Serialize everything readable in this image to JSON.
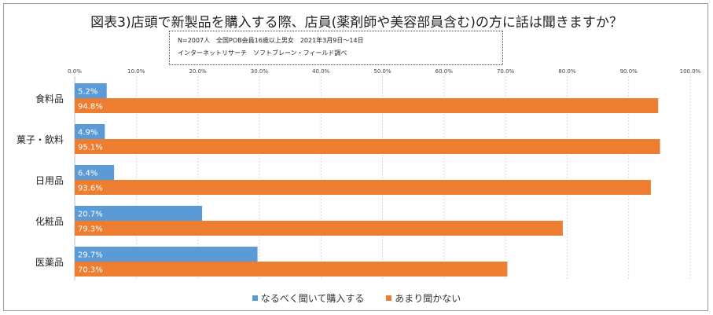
{
  "chart_data": {
    "type": "bar",
    "orientation": "horizontal",
    "title": "図表3)店頭で新製品を購入する際、店員(薬剤師や美容部員含む)の方に話は聞きますか？",
    "notes": [
      "N=2007人　全国POB会員16歳以上男女　2021年3月9日～14日",
      "インターネットリサーチ　ソフトブレーン・フィールド調べ"
    ],
    "categories": [
      "食料品",
      "菓子・飲料",
      "日用品",
      "化粧品",
      "医薬品"
    ],
    "series": [
      {
        "name": "なるべく聞いて購入する",
        "values": [
          5.2,
          4.9,
          6.4,
          20.7,
          29.7
        ],
        "labels": [
          "5.2%",
          "4.9%",
          "6.4%",
          "20.7%",
          "29.7%"
        ],
        "color": "#5b9bd5"
      },
      {
        "name": "あまり聞かない",
        "values": [
          94.8,
          95.1,
          93.6,
          79.3,
          70.3
        ],
        "labels": [
          "94.8%",
          "95.1%",
          "93.6%",
          "79.3%",
          "70.3%"
        ],
        "color": "#ed7d31"
      }
    ],
    "xlim": [
      0,
      100
    ],
    "xticks": [
      "0.0%",
      "10.0%",
      "20.0%",
      "30.0%",
      "40.0%",
      "50.0%",
      "60.0%",
      "70.0%",
      "80.0%",
      "90.0%",
      "100.0%"
    ],
    "grid": true,
    "legend": "bottom"
  }
}
